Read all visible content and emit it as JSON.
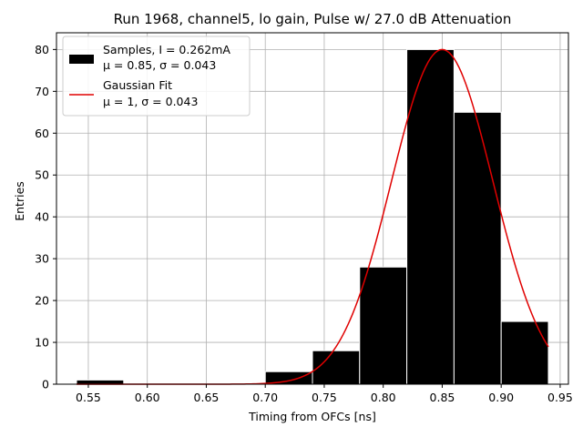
{
  "chart_data": {
    "type": "bar",
    "title": "Run 1968, channel5, lo gain, Pulse w/ 27.0 dB Attenuation",
    "xlabel": "Timing from OFCs [ns]",
    "ylabel": "Entries",
    "xlim": [
      0.523,
      0.957
    ],
    "ylim": [
      0,
      84
    ],
    "xticks": [
      "0.55",
      "0.60",
      "0.65",
      "0.70",
      "0.75",
      "0.80",
      "0.85",
      "0.90",
      "0.95"
    ],
    "xtick_values": [
      0.55,
      0.6,
      0.65,
      0.7,
      0.75,
      0.8,
      0.85,
      0.9,
      0.95
    ],
    "yticks": [
      "0",
      "10",
      "20",
      "30",
      "40",
      "50",
      "60",
      "70",
      "80"
    ],
    "ytick_values": [
      0,
      10,
      20,
      30,
      40,
      50,
      60,
      70,
      80
    ],
    "grid": true,
    "legend_position": "top-left",
    "histogram": {
      "bin_edges": [
        0.54,
        0.58,
        0.62,
        0.66,
        0.7,
        0.74,
        0.78,
        0.82,
        0.86,
        0.9,
        0.94
      ],
      "counts": [
        1,
        0,
        0,
        0,
        3,
        8,
        28,
        80,
        65,
        15
      ],
      "color": "#000000",
      "edge_color": "#ffffff",
      "legend_line1": "Samples, I = 0.262mA",
      "legend_line2": "μ = 0.85, σ = 0.043"
    },
    "fit": {
      "type": "gaussian",
      "peak": 80,
      "mean": 0.85,
      "sigma": 0.043,
      "x_range": [
        0.54,
        0.94
      ],
      "color": "#e00000",
      "legend_line1": "Gaussian Fit",
      "legend_line2": "μ = 1, σ = 0.043"
    }
  }
}
